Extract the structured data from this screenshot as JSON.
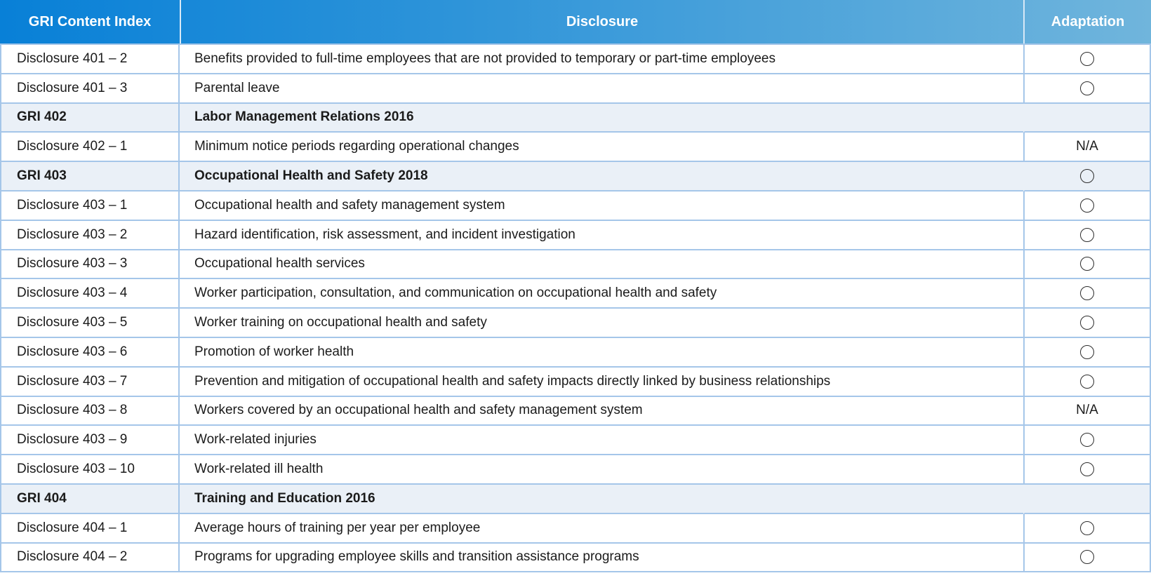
{
  "table": {
    "header": {
      "gri_content_index": "GRI Content Index",
      "disclosure": "Disclosure",
      "adaptation": "Adaptation"
    },
    "adaptation_values": {
      "circle_marker": "circle",
      "not_applicable": "N/A",
      "empty": "none"
    },
    "rows": [
      {
        "type": "disclosure",
        "index": "Disclosure 401 – 2",
        "disclosure": "Benefits provided to full-time employees that are not provided to temporary or part-time employees",
        "adaptation": "circle"
      },
      {
        "type": "disclosure",
        "index": "Disclosure 401 – 3",
        "disclosure": "Parental leave",
        "adaptation": "circle"
      },
      {
        "type": "section",
        "index": "GRI 402",
        "disclosure": "Labor Management Relations 2016",
        "adaptation": "none"
      },
      {
        "type": "disclosure",
        "index": "Disclosure 402 – 1",
        "disclosure": "Minimum notice periods regarding operational changes",
        "adaptation": "N/A"
      },
      {
        "type": "section",
        "index": "GRI 403",
        "disclosure": "Occupational Health and Safety 2018",
        "adaptation": "circle"
      },
      {
        "type": "disclosure",
        "index": "Disclosure 403 – 1",
        "disclosure": "Occupational health and safety management system",
        "adaptation": "circle"
      },
      {
        "type": "disclosure",
        "index": "Disclosure 403 – 2",
        "disclosure": "Hazard identification, risk assessment, and incident investigation",
        "adaptation": "circle"
      },
      {
        "type": "disclosure",
        "index": "Disclosure 403 – 3",
        "disclosure": "Occupational health services",
        "adaptation": "circle"
      },
      {
        "type": "disclosure",
        "index": "Disclosure 403 – 4",
        "disclosure": "Worker participation, consultation, and communication on occupational health and safety",
        "adaptation": "circle"
      },
      {
        "type": "disclosure",
        "index": "Disclosure 403 – 5",
        "disclosure": "Worker training on occupational health and safety",
        "adaptation": "circle"
      },
      {
        "type": "disclosure",
        "index": "Disclosure 403 – 6",
        "disclosure": "Promotion of worker health",
        "adaptation": "circle"
      },
      {
        "type": "disclosure",
        "index": "Disclosure 403 – 7",
        "disclosure": "Prevention and mitigation of occupational health and safety impacts directly linked by business relationships",
        "adaptation": "circle"
      },
      {
        "type": "disclosure",
        "index": "Disclosure 403 – 8",
        "disclosure": "Workers covered by an occupational health and safety management system",
        "adaptation": "N/A"
      },
      {
        "type": "disclosure",
        "index": "Disclosure 403 – 9",
        "disclosure": "Work-related injuries",
        "adaptation": "circle"
      },
      {
        "type": "disclosure",
        "index": "Disclosure 403 – 10",
        "disclosure": "Work-related ill health",
        "adaptation": "circle"
      },
      {
        "type": "section",
        "index": "GRI 404",
        "disclosure": "Training and Education 2016",
        "adaptation": "none"
      },
      {
        "type": "disclosure",
        "index": "Disclosure 404 – 1",
        "disclosure": "Average hours of training per year per employee",
        "adaptation": "circle"
      },
      {
        "type": "disclosure",
        "index": "Disclosure 404 – 2",
        "disclosure": "Programs for upgrading employee skills and transition assistance programs",
        "adaptation": "circle"
      }
    ]
  },
  "colors": {
    "header_gradient_left": "#0880d7",
    "header_gradient_right": "#70b5dc",
    "header_text": "#ffffff",
    "row_border": "#a5c6e9",
    "section_row_bg": "#eaf0f7",
    "body_text": "#1b1b1b",
    "circle_stroke": "#2d2d2d"
  }
}
